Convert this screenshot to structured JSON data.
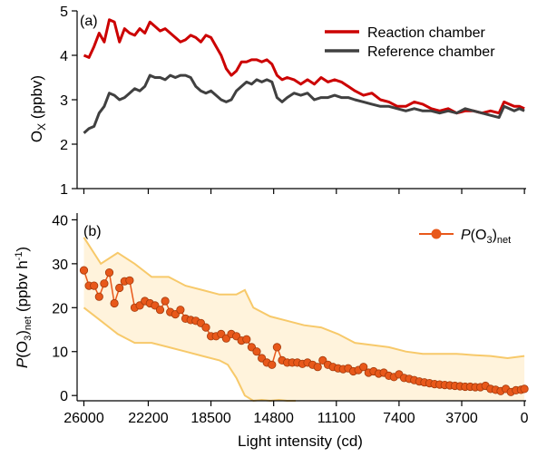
{
  "chart_data": [
    {
      "panel": "(a)",
      "type": "line",
      "ylabel_main": "O",
      "ylabel_sub": "X",
      "ylabel_unit": " (ppbv)",
      "ylim": [
        1,
        5
      ],
      "yticks": [
        1,
        2,
        3,
        4,
        5
      ],
      "xlim": [
        26400,
        -100
      ],
      "legend_placement": "top-right",
      "series": [
        {
          "name": "Reaction chamber",
          "color": "#cc0000",
          "x": [
            26000,
            25700,
            25400,
            25100,
            24800,
            24500,
            24200,
            23900,
            23600,
            23300,
            23000,
            22700,
            22400,
            22100,
            21800,
            21500,
            21200,
            20900,
            20600,
            20300,
            20000,
            19700,
            19400,
            19100,
            18800,
            18500,
            18200,
            17900,
            17600,
            17300,
            17000,
            16700,
            16400,
            16100,
            15800,
            15500,
            15200,
            14900,
            14600,
            14300,
            14000,
            13600,
            13200,
            12800,
            12400,
            12000,
            11600,
            11200,
            10800,
            10400,
            10000,
            9500,
            9000,
            8500,
            8000,
            7500,
            7000,
            6500,
            6000,
            5500,
            5000,
            4500,
            4000,
            3500,
            3000,
            2500,
            2000,
            1500,
            1200,
            900,
            600,
            300,
            0
          ],
          "y": [
            4.0,
            3.95,
            4.2,
            4.5,
            4.3,
            4.8,
            4.75,
            4.3,
            4.6,
            4.5,
            4.45,
            4.6,
            4.5,
            4.75,
            4.65,
            4.55,
            4.6,
            4.5,
            4.4,
            4.3,
            4.35,
            4.45,
            4.4,
            4.3,
            4.45,
            4.4,
            4.2,
            4.0,
            3.7,
            3.55,
            3.65,
            3.85,
            3.85,
            3.9,
            3.9,
            3.85,
            3.9,
            3.8,
            3.55,
            3.45,
            3.5,
            3.45,
            3.35,
            3.45,
            3.35,
            3.5,
            3.4,
            3.45,
            3.4,
            3.3,
            3.2,
            3.1,
            3.15,
            3.0,
            2.95,
            2.85,
            2.85,
            2.95,
            2.9,
            2.8,
            2.75,
            2.8,
            2.7,
            2.75,
            2.75,
            2.7,
            2.75,
            2.7,
            2.95,
            2.9,
            2.85,
            2.85,
            2.8
          ]
        },
        {
          "name": "Reference chamber",
          "color": "#404040",
          "x": [
            26000,
            25700,
            25400,
            25100,
            24800,
            24500,
            24200,
            23900,
            23600,
            23300,
            23000,
            22700,
            22400,
            22100,
            21800,
            21500,
            21200,
            20900,
            20600,
            20300,
            20000,
            19700,
            19400,
            19100,
            18800,
            18500,
            18200,
            17900,
            17600,
            17300,
            17000,
            16700,
            16400,
            16100,
            15800,
            15500,
            15200,
            14900,
            14600,
            14300,
            14000,
            13600,
            13200,
            12800,
            12400,
            12000,
            11600,
            11200,
            10800,
            10400,
            10000,
            9500,
            9000,
            8500,
            8000,
            7500,
            7000,
            6500,
            6000,
            5500,
            5000,
            4500,
            4000,
            3500,
            3000,
            2500,
            2000,
            1500,
            1200,
            900,
            600,
            300,
            0
          ],
          "y": [
            2.25,
            2.35,
            2.4,
            2.7,
            2.85,
            3.15,
            3.1,
            3.0,
            3.05,
            3.15,
            3.25,
            3.2,
            3.3,
            3.55,
            3.5,
            3.5,
            3.45,
            3.55,
            3.5,
            3.55,
            3.55,
            3.5,
            3.3,
            3.2,
            3.15,
            3.2,
            3.1,
            3.0,
            2.95,
            3.0,
            3.2,
            3.3,
            3.4,
            3.35,
            3.45,
            3.4,
            3.45,
            3.4,
            3.05,
            2.95,
            3.05,
            3.15,
            3.1,
            3.15,
            3.0,
            3.05,
            3.05,
            3.1,
            3.05,
            3.05,
            3.0,
            2.95,
            2.9,
            2.85,
            2.85,
            2.8,
            2.75,
            2.8,
            2.75,
            2.75,
            2.7,
            2.75,
            2.7,
            2.8,
            2.75,
            2.7,
            2.65,
            2.6,
            2.85,
            2.8,
            2.75,
            2.8,
            2.75
          ]
        }
      ]
    },
    {
      "panel": "(b)",
      "type": "scatter",
      "ylabel_main": "P",
      "ylabel_paren": "(O",
      "ylabel_sub1": "3",
      "ylabel_close": ")",
      "ylabel_sub2": "net",
      "ylabel_unit": " (ppbv h",
      "ylabel_sup": "-1",
      "ylabel_end": ")",
      "xlabel": "Light intensity (cd)",
      "xticks": [
        26000,
        22200,
        18500,
        14800,
        11100,
        7400,
        3700,
        0
      ],
      "ylim": [
        0,
        40
      ],
      "yticks": [
        0,
        10,
        20,
        30,
        40
      ],
      "xlim": [
        26400,
        -100
      ],
      "legend_placement": "top-right",
      "series_name_main": "P",
      "series_name_paren": "(O",
      "series_name_sub1": "3",
      "series_name_close": ")",
      "series_name_sub2": "net",
      "marker_color": "#e8581a",
      "band_fill": "#fff3dc",
      "band_line": "#f7c96a",
      "x": [
        26000,
        25700,
        25400,
        25100,
        24800,
        24500,
        24200,
        23900,
        23600,
        23300,
        23000,
        22700,
        22400,
        22100,
        21800,
        21500,
        21200,
        20900,
        20600,
        20300,
        20000,
        19700,
        19400,
        19100,
        18800,
        18500,
        18200,
        17900,
        17600,
        17300,
        17000,
        16700,
        16400,
        16100,
        15800,
        15500,
        15200,
        14900,
        14600,
        14300,
        14000,
        13700,
        13400,
        13100,
        12800,
        12500,
        12200,
        11900,
        11600,
        11300,
        11000,
        10700,
        10400,
        10100,
        9800,
        9500,
        9200,
        8900,
        8600,
        8300,
        8000,
        7700,
        7400,
        7100,
        6800,
        6500,
        6200,
        5900,
        5600,
        5300,
        5000,
        4700,
        4400,
        4100,
        3800,
        3500,
        3200,
        2900,
        2600,
        2300,
        2000,
        1700,
        1400,
        1100,
        800,
        500,
        200,
        0
      ],
      "y": [
        28.5,
        25,
        25,
        22.5,
        25.5,
        28,
        21,
        24.5,
        26,
        26.2,
        20,
        20.5,
        21.5,
        21,
        20.5,
        19.5,
        21.5,
        19,
        18.5,
        19.5,
        17.5,
        17.2,
        17,
        16.5,
        15.5,
        13.5,
        13.5,
        14,
        13,
        14,
        13.5,
        12.5,
        12.8,
        11,
        10,
        8.5,
        7.5,
        7,
        11,
        8,
        7.5,
        7.5,
        7.5,
        7.2,
        7.5,
        7,
        6.5,
        8,
        7,
        6.5,
        6.2,
        6,
        6.2,
        5.5,
        5.8,
        6.5,
        5.2,
        5.5,
        5,
        5.2,
        4.5,
        4.2,
        4.8,
        4,
        3.8,
        3.5,
        3.2,
        3,
        2.8,
        2.6,
        2.5,
        2.4,
        2.3,
        2.2,
        2.1,
        2.0,
        2.0,
        1.9,
        1.9,
        2.2,
        1.5,
        1.3,
        1.0,
        1.5,
        0.8,
        1.2,
        1.3,
        1.5
      ],
      "band_upper_x": [
        26000,
        25000,
        24000,
        23000,
        22000,
        21000,
        20000,
        19000,
        18000,
        17000,
        16500,
        16000,
        15000,
        14000,
        13000,
        12000,
        11000,
        10000,
        9000,
        8000,
        7000,
        6000,
        5000,
        4000,
        3000,
        2000,
        1000,
        0
      ],
      "band_upper_y": [
        36,
        30,
        32.5,
        30,
        27,
        27,
        25,
        24,
        23,
        23,
        24,
        20,
        18,
        17,
        16,
        15.5,
        14,
        12,
        11.5,
        11,
        10,
        9.5,
        9.5,
        9.5,
        9.2,
        9.0,
        8.5,
        9.0
      ],
      "band_lower_x": [
        26000,
        25000,
        24000,
        23000,
        22000,
        21000,
        20000,
        19000,
        18000,
        17500,
        17000,
        16500,
        16000,
        15500,
        15000,
        14500,
        14000,
        13500
      ],
      "band_lower_y": [
        20,
        17,
        14,
        12,
        12,
        11,
        10,
        9,
        8,
        7,
        4,
        0,
        -2,
        -1,
        -2,
        -1,
        -1.5,
        -2
      ]
    }
  ]
}
